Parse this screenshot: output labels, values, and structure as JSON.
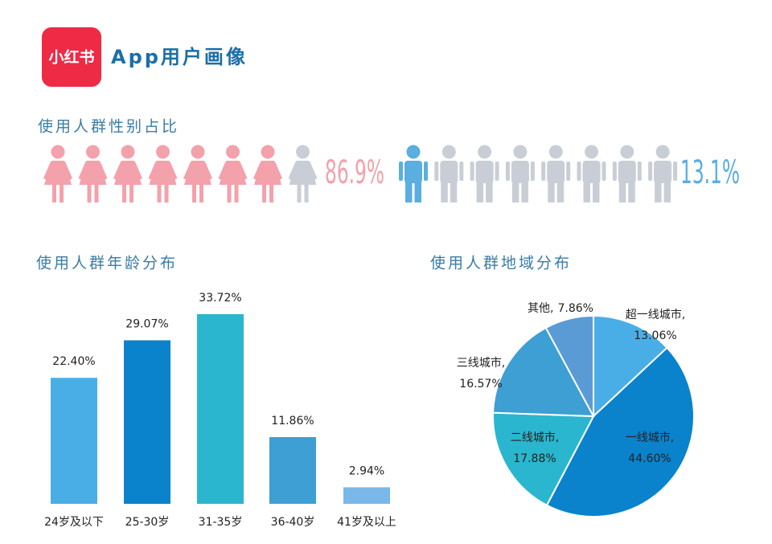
{
  "header": {
    "logo": "小红书",
    "title": "App用户画像"
  },
  "chart_data": [
    {
      "type": "pictogram",
      "title": "使用人群性别占比",
      "values": [
        86.9,
        13.1
      ],
      "value_labels": [
        "86.9%",
        "13.1%"
      ],
      "colors": [
        "#f3a1ab",
        "#5aaee0"
      ],
      "empty_color": "#c9ced6"
    },
    {
      "type": "bar",
      "title": "使用人群年龄分布",
      "categories": [
        "24岁及以下",
        "25-30岁",
        "31-35岁",
        "36-40岁",
        "41岁及以上"
      ],
      "values": [
        22.4,
        29.07,
        33.72,
        11.86,
        2.94
      ],
      "value_labels": [
        "22.40%",
        "29.07%",
        "33.72%",
        "11.86%",
        "2.94%"
      ],
      "colors": [
        "#4aaee6",
        "#0a82cc",
        "#2ab6cf",
        "#3d9fd3",
        "#7ab8ea"
      ]
    },
    {
      "type": "pie",
      "title": "使用人群地域分布",
      "categories": [
        "超一线城市,",
        "一线城市,",
        "二线城市,",
        "三线城市,",
        "其他,"
      ],
      "values": [
        13.06,
        44.6,
        17.88,
        16.57,
        7.86
      ],
      "value_labels": [
        "13.06%",
        "44.60%",
        "17.88%",
        "16.57%",
        "7.86%"
      ],
      "colors": [
        "#4aaee6",
        "#0a82cc",
        "#2ab6cf",
        "#3d9fd3",
        "#5b9bd5"
      ]
    }
  ]
}
